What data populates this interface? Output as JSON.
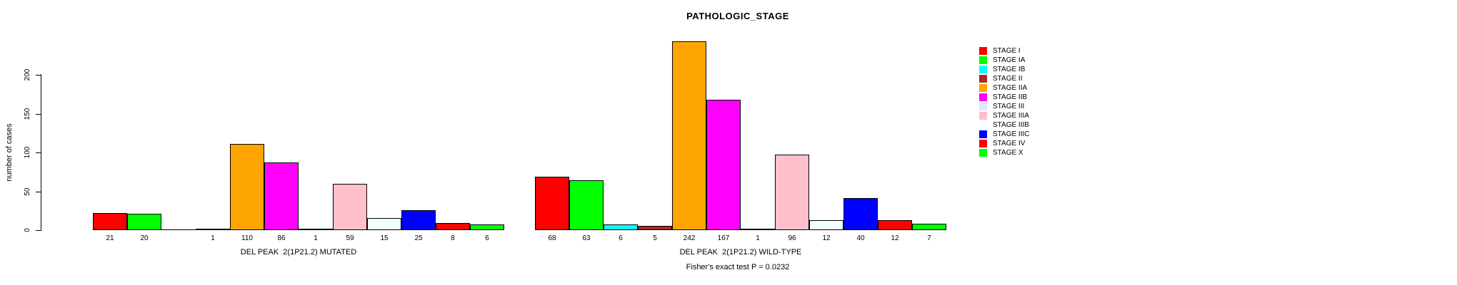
{
  "chart_data": {
    "type": "bar",
    "title": "PATHOLOGIC_STAGE",
    "ylabel": "number of cases",
    "footnote": "Fisher's exact test P = 0.0232",
    "yticks": [
      0,
      50,
      100,
      150,
      200
    ],
    "ylim": [
      0,
      250
    ],
    "grid": false,
    "legend_position": "right",
    "categories": [
      "STAGE I",
      "STAGE IA",
      "STAGE IB",
      "STAGE II",
      "STAGE IIA",
      "STAGE IIB",
      "STAGE III",
      "STAGE IIIA",
      "STAGE IIIB",
      "STAGE IIIC",
      "STAGE IV",
      "STAGE X"
    ],
    "colors": [
      "#FF0000",
      "#00FF00",
      "#00FFFF",
      "#A52A2A",
      "#FFA500",
      "#FF00FF",
      "#E6E6FA",
      "#FFC0CB",
      "#F0FFFF",
      "#0000FF",
      "#FF0000",
      "#00FF00"
    ],
    "groups": [
      {
        "label": "DEL PEAK  2(1P21.2) MUTATED",
        "values": [
          21,
          20,
          null,
          1,
          110,
          86,
          1,
          59,
          15,
          25,
          8,
          6
        ]
      },
      {
        "label": "DEL PEAK  2(1P21.2) WILD-TYPE",
        "values": [
          68,
          63,
          6,
          5,
          242,
          167,
          1,
          96,
          12,
          40,
          12,
          7
        ]
      }
    ]
  }
}
